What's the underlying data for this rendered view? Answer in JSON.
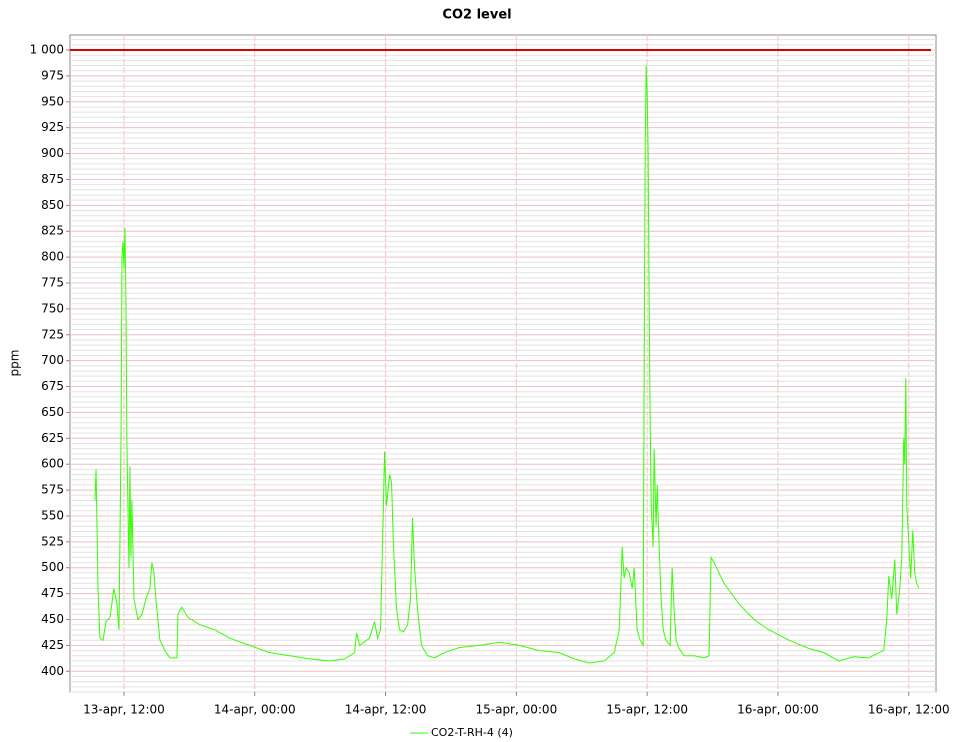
{
  "chart_data": {
    "type": "line",
    "title": "CO2 level",
    "ylabel": "ppm",
    "x": [
      9.34,
      9.44,
      9.62,
      9.8,
      10.08,
      10.35,
      10.72,
      11.08,
      11.36,
      11.54,
      11.73,
      11.82,
      11.91,
      12.0,
      12.09,
      12.18,
      12.27,
      12.46,
      12.55,
      12.64,
      12.73,
      12.92,
      13.28,
      13.65,
      14.02,
      14.38,
      14.56,
      14.75,
      14.93,
      15.3,
      15.76,
      16.21,
      16.86,
      16.95,
      17.31,
      17.86,
      18.96,
      20.34,
      21.71,
      23.54,
      25.37,
      27.21,
      29.04,
      30.87,
      32.24,
      33.16,
      33.34,
      33.62,
      34.53,
      34.99,
      35.27,
      35.54,
      35.73,
      35.91,
      36.09,
      36.37,
      36.55,
      36.73,
      37.01,
      37.28,
      37.65,
      38.02,
      38.29,
      38.47,
      38.66,
      38.93,
      39.3,
      39.85,
      40.49,
      41.4,
      42.78,
      44.61,
      46.44,
      48.27,
      50.11,
      51.94,
      53.31,
      54.69,
      56.06,
      56.98,
      57.44,
      57.71,
      57.89,
      58.08,
      58.35,
      58.63,
      58.81,
      59.08,
      59.36,
      59.63,
      59.73,
      59.82,
      59.91,
      60.0,
      60.09,
      60.18,
      60.27,
      60.37,
      60.55,
      60.64,
      60.82,
      60.92,
      61.1,
      61.28,
      61.47,
      61.74,
      62.11,
      62.29,
      62.47,
      62.66,
      62.93,
      63.39,
      64.31,
      65.22,
      65.68,
      65.86,
      66.14,
      67.05,
      68.43,
      69.8,
      71.18,
      73.01,
      74.84,
      76.21,
      77.59,
      78.96,
      80.34,
      81.25,
      81.71,
      81.98,
      82.17,
      82.44,
      82.72,
      82.9,
      83.18,
      83.36,
      83.54,
      83.63,
      83.73,
      83.82,
      84.0,
      84.18,
      84.37,
      84.55,
      84.73,
      84.92
    ],
    "series": [
      {
        "name": "CO2-T-RH-4 (4)",
        "color": "#33ff00",
        "values": [
          565,
          595,
          480,
          432,
          430,
          448,
          452,
          480,
          465,
          440,
          620,
          800,
          815,
          790,
          828,
          760,
          620,
          500,
          598,
          510,
          565,
          470,
          450,
          455,
          470,
          480,
          505,
          495,
          470,
          430,
          420,
          413,
          413,
          455,
          462,
          452,
          445,
          440,
          432,
          425,
          418,
          415,
          412,
          410,
          412,
          418,
          437,
          425,
          432,
          448,
          432,
          440,
          525,
          612,
          560,
          590,
          582,
          520,
          460,
          440,
          438,
          445,
          470,
          548,
          500,
          460,
          425,
          415,
          413,
          418,
          423,
          425,
          428,
          425,
          420,
          418,
          412,
          408,
          410,
          418,
          440,
          520,
          490,
          500,
          495,
          480,
          500,
          440,
          430,
          425,
          700,
          900,
          985,
          960,
          900,
          760,
          650,
          560,
          520,
          615,
          540,
          580,
          520,
          470,
          440,
          430,
          425,
          500,
          460,
          430,
          422,
          415,
          415,
          413,
          415,
          510,
          505,
          485,
          465,
          450,
          440,
          430,
          422,
          418,
          410,
          414,
          413,
          418,
          420,
          450,
          492,
          470,
          508,
          455,
          480,
          510,
          625,
          600,
          683,
          560,
          525,
          490,
          536,
          495,
          485,
          480
        ]
      }
    ],
    "xlim": [
      7.05,
      86.5
    ],
    "xticks": [
      {
        "value": 12,
        "label": "13-apr, 12:00"
      },
      {
        "value": 24,
        "label": "14-apr, 00:00"
      },
      {
        "value": 36,
        "label": "14-apr, 12:00"
      },
      {
        "value": 48,
        "label": "15-apr, 00:00"
      },
      {
        "value": 60,
        "label": "15-apr, 12:00"
      },
      {
        "value": 72,
        "label": "16-apr, 00:00"
      },
      {
        "value": 84,
        "label": "16-apr, 12:00"
      }
    ],
    "ylim": [
      380,
      1014.5
    ],
    "yticks": [
      400,
      425,
      450,
      475,
      500,
      525,
      550,
      575,
      600,
      625,
      650,
      675,
      700,
      725,
      750,
      775,
      800,
      825,
      850,
      875,
      900,
      925,
      950,
      975,
      {
        "value": 1000,
        "label": "1 000"
      }
    ],
    "reference_line": {
      "value": 1000,
      "color": "#dd0000"
    },
    "grid": true
  }
}
